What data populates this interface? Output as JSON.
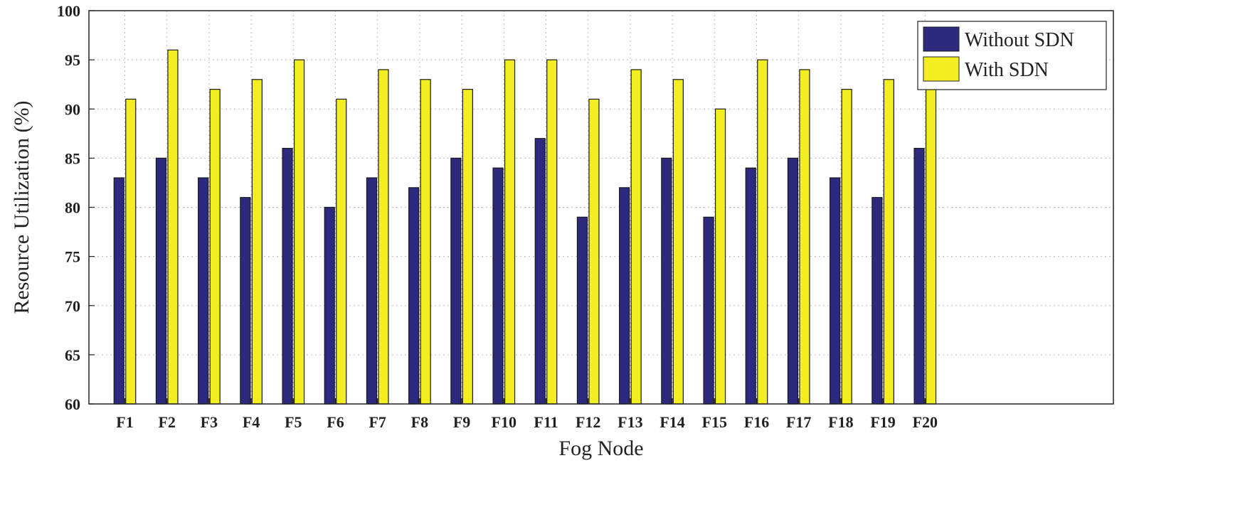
{
  "chart_data": {
    "type": "bar",
    "categories": [
      "F1",
      "F2",
      "F3",
      "F4",
      "F5",
      "F6",
      "F7",
      "F8",
      "F9",
      "F10",
      "F11",
      "F12",
      "F13",
      "F14",
      "F15",
      "F16",
      "F17",
      "F18",
      "F19",
      "F20"
    ],
    "series": [
      {
        "name": "Without SDN",
        "color": "#2d2a7e",
        "values": [
          83,
          85,
          83,
          81,
          86,
          80,
          83,
          82,
          85,
          84,
          87,
          79,
          82,
          85,
          79,
          84,
          85,
          83,
          81,
          86
        ]
      },
      {
        "name": "With SDN",
        "color": "#f2ee22",
        "values": [
          91,
          96,
          92,
          93,
          95,
          91,
          94,
          93,
          92,
          95,
          95,
          91,
          94,
          93,
          90,
          95,
          94,
          92,
          93,
          94
        ]
      }
    ],
    "xlabel": "Fog Node",
    "ylabel": "Resource Utilization (%)",
    "ylim": [
      60,
      100
    ],
    "yticks": [
      60,
      65,
      70,
      75,
      80,
      85,
      90,
      95,
      100
    ],
    "grid": true,
    "legend_position": "top-right"
  }
}
